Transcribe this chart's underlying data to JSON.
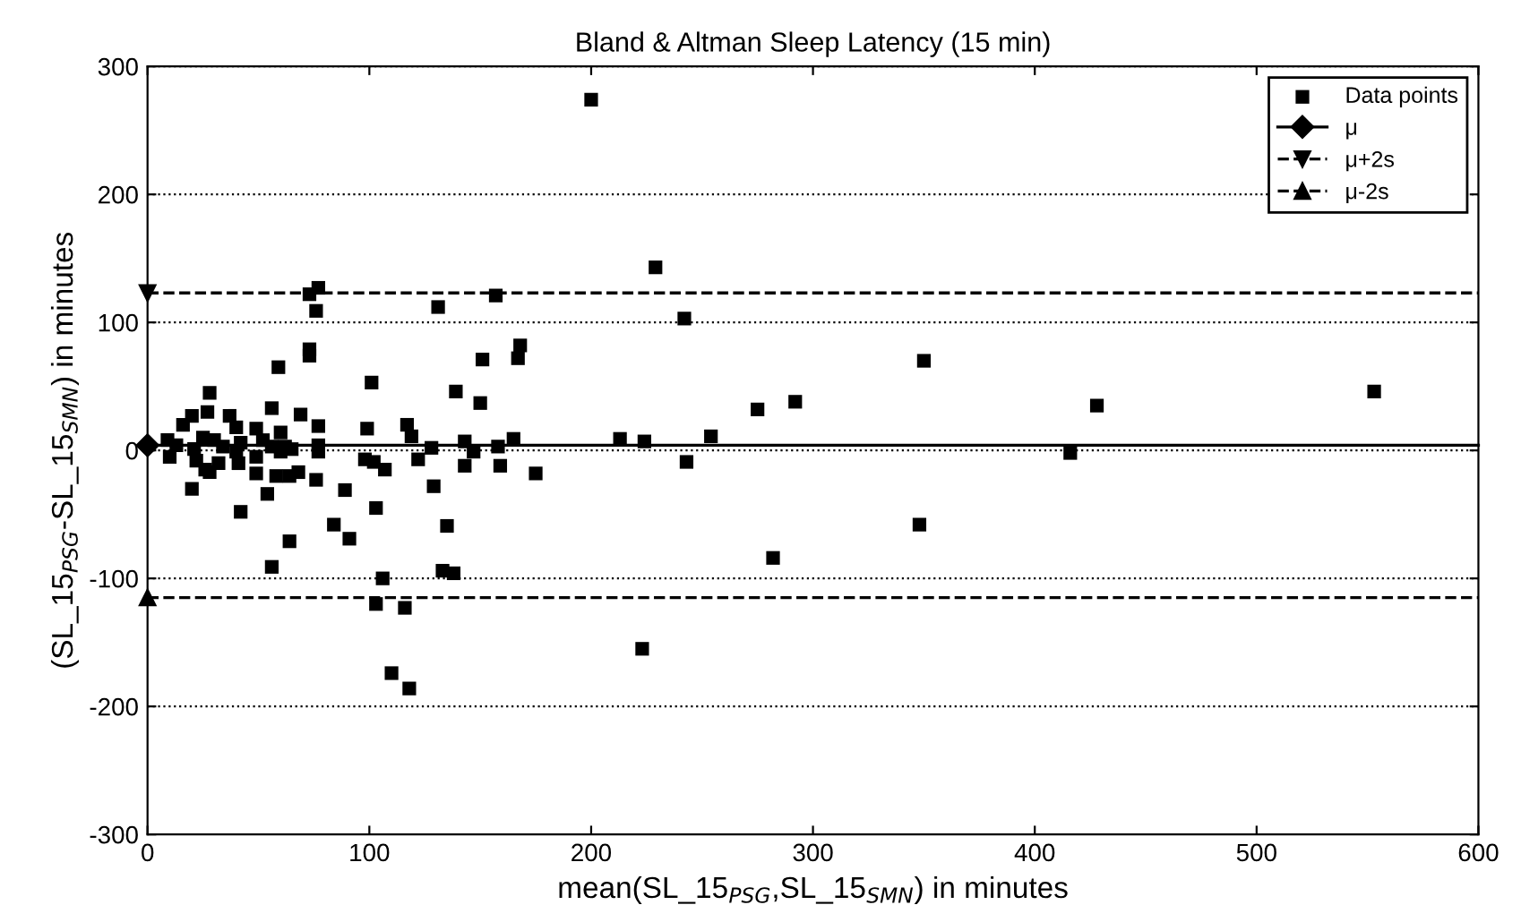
{
  "chart_data": {
    "type": "scatter",
    "title": "Bland & Altman Sleep Latency (15 min)",
    "xlabel": "mean(SL_15$_{PSG}$,SL_15$_{SMN}$) in minutes",
    "ylabel": "(SL_15$_{PSG}$-SL_15$_{SMN}$) in minutes",
    "xlim": [
      0,
      600
    ],
    "xticks": [
      0,
      100,
      200,
      300,
      400,
      500,
      600
    ],
    "ylim": [
      -300,
      300
    ],
    "yticks": [
      -300,
      -200,
      -100,
      0,
      100,
      200,
      300
    ],
    "grid": "y",
    "legend": "top right",
    "series": [
      {
        "name": "Data points",
        "marker": "square",
        "color": "#000000",
        "x": [
          200,
          229,
          242,
          350,
          275,
          292,
          213,
          224,
          254,
          243,
          348,
          282,
          223,
          428,
          553,
          416,
          157,
          131,
          168,
          151,
          167,
          101,
          139,
          150,
          99,
          117,
          119,
          128,
          143,
          147,
          158,
          165,
          98,
          102,
          107,
          122,
          143,
          159,
          175,
          89,
          129,
          103,
          84,
          91,
          135,
          133,
          138,
          106,
          103,
          116,
          110,
          118,
          77,
          73,
          76,
          73,
          73,
          59,
          28,
          27,
          56,
          69,
          20,
          37,
          77,
          16,
          40,
          49,
          60,
          9,
          13,
          25,
          30,
          34,
          42,
          52,
          56,
          62,
          10,
          21,
          22,
          26,
          28,
          32,
          40,
          41,
          49,
          49,
          60,
          58,
          64,
          65,
          68,
          77,
          76,
          20,
          54,
          42,
          64,
          56,
          77
        ],
        "values": [
          274,
          143,
          103,
          70,
          32,
          38,
          9,
          7,
          11,
          -9,
          -58,
          -84,
          -155,
          35,
          46,
          -2,
          121,
          112,
          82,
          71,
          72,
          53,
          46,
          37,
          17,
          20,
          11,
          2,
          7,
          -1,
          3,
          9,
          -7,
          -9,
          -15,
          -7,
          -12,
          -12,
          -18,
          -31,
          -28,
          -45,
          -58,
          -69,
          -59,
          -94,
          -96,
          -100,
          -120,
          -123,
          -174,
          -186,
          127,
          122,
          109,
          79,
          74,
          65,
          45,
          30,
          33,
          28,
          27,
          27,
          19,
          20,
          18,
          17,
          14,
          8,
          4,
          10,
          8,
          3,
          6,
          8,
          3,
          3,
          -5,
          1,
          -8,
          -15,
          -17,
          -10,
          -1,
          -10,
          -5,
          -18,
          -1,
          -20,
          -20,
          1,
          -17,
          -1,
          -23,
          -30,
          -34,
          -48,
          -71,
          -91,
          4
        ]
      },
      {
        "name": "μ",
        "type": "line",
        "marker": "diamond",
        "line_style": "solid",
        "color": "#000000",
        "x": [
          0,
          600
        ],
        "values": [
          4,
          4
        ]
      },
      {
        "name": "μ+2s",
        "type": "line",
        "marker": "triangle_down",
        "line_style": "dashed",
        "color": "#000000",
        "x": [
          0,
          600
        ],
        "values": [
          123,
          123
        ]
      },
      {
        "name": "μ-2s",
        "type": "line",
        "marker": "triangle",
        "line_style": "dashed",
        "color": "#000000",
        "x": [
          0,
          600
        ],
        "values": [
          -115,
          -115
        ]
      }
    ]
  }
}
